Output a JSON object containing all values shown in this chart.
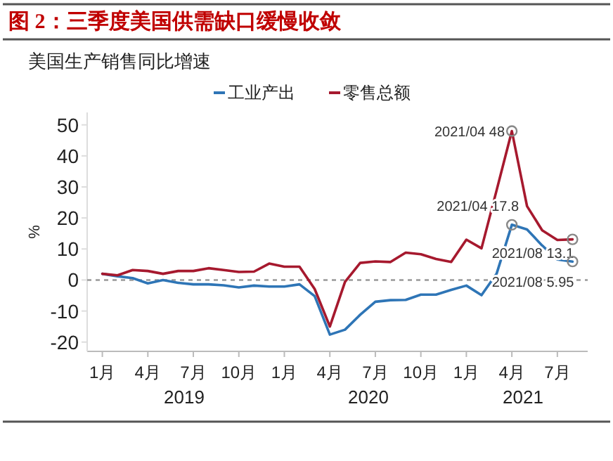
{
  "chart_data": {
    "type": "line",
    "title": "图 2：三季度美国供需缺口缓慢收敛",
    "subtitle": "美国生产销售同比增速",
    "ylabel": "%",
    "x": [
      "2019-01",
      "2019-02",
      "2019-03",
      "2019-04",
      "2019-05",
      "2019-06",
      "2019-07",
      "2019-08",
      "2019-09",
      "2019-10",
      "2019-11",
      "2019-12",
      "2020-01",
      "2020-02",
      "2020-03",
      "2020-04",
      "2020-05",
      "2020-06",
      "2020-07",
      "2020-08",
      "2020-09",
      "2020-10",
      "2020-11",
      "2020-12",
      "2021-01",
      "2021-02",
      "2021-03",
      "2021-04",
      "2021-05",
      "2021-06",
      "2021-07",
      "2021-08"
    ],
    "series": [
      {
        "name": "工业产出",
        "color": "#2e75b6",
        "values": [
          2.0,
          1.2,
          0.6,
          -1.1,
          0,
          -0.9,
          -1.4,
          -1.4,
          -1.7,
          -2.4,
          -1.8,
          -2.1,
          -2.1,
          -1.4,
          -5.2,
          -17.6,
          -16,
          -11.2,
          -7.0,
          -6.5,
          -6.4,
          -4.7,
          -4.7,
          -3.2,
          -1.8,
          -4.9,
          2.1,
          17.8,
          16.3,
          11.1,
          6.6,
          5.95
        ]
      },
      {
        "name": "零售总额",
        "color": "#a6192e",
        "values": [
          2.0,
          1.5,
          3.2,
          2.9,
          2.0,
          2.9,
          2.9,
          3.8,
          3.2,
          2.6,
          2.7,
          5.3,
          4.3,
          4.3,
          -2.9,
          -15,
          -0.6,
          5.5,
          6.0,
          5.8,
          8.8,
          8.3,
          6.8,
          5.8,
          13,
          10.2,
          29,
          48,
          23.8,
          16,
          12.9,
          13.1
        ]
      }
    ],
    "xlim": [
      "2018-12",
      "2021-09"
    ],
    "xticks": [
      {
        "value": "2019-01",
        "label": "1月"
      },
      {
        "value": "2019-04",
        "label": "4月"
      },
      {
        "value": "2019-07",
        "label": "7月"
      },
      {
        "value": "2019-10",
        "label": "10月"
      },
      {
        "value": "2020-01",
        "label": "1月"
      },
      {
        "value": "2020-04",
        "label": "4月"
      },
      {
        "value": "2020-07",
        "label": "7月"
      },
      {
        "value": "2020-10",
        "label": "10月"
      },
      {
        "value": "2021-01",
        "label": "1月"
      },
      {
        "value": "2021-04",
        "label": "4月"
      },
      {
        "value": "2021-07",
        "label": "7月"
      }
    ],
    "ylim": [
      -23,
      54
    ],
    "yticks": [
      -20,
      -10,
      0,
      10,
      20,
      30,
      40,
      50
    ],
    "ref_lines": [
      {
        "axis": "y",
        "value": 0,
        "color": "#999999",
        "line_style": "dashed"
      }
    ],
    "annotations": [
      {
        "text": "2021/04 48",
        "x": "2021-04",
        "y": 48
      },
      {
        "text": "2021/04 17.8",
        "x": "2021-04",
        "y": 17.8
      },
      {
        "text": "2021/08 13.1",
        "x": "2021-08",
        "y": 13.1
      },
      {
        "text": "2021/08 5.95",
        "x": "2021-08",
        "y": 5.95
      },
      "2019",
      "2020",
      "2021"
    ],
    "legend": "top",
    "grid": false,
    "marker": "none",
    "line_style": "solid"
  }
}
